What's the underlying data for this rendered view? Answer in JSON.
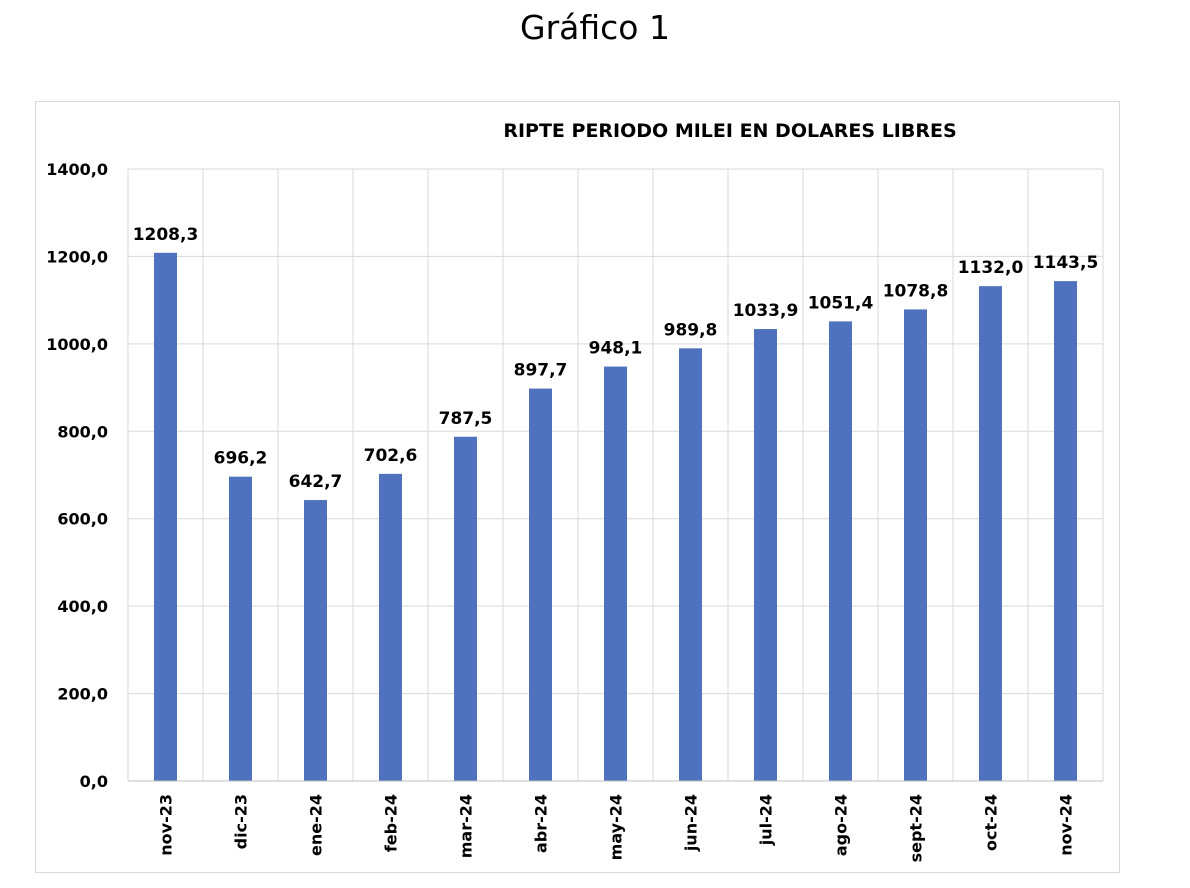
{
  "page": {
    "title": "Gráfico 1"
  },
  "chart_data": {
    "type": "bar",
    "title": "RIPTE PERIODO MILEI EN DOLARES LIBRES",
    "categories": [
      "nov-23",
      "dic-23",
      "ene-24",
      "feb-24",
      "mar-24",
      "abr-24",
      "may-24",
      "jun-24",
      "jul-24",
      "ago-24",
      "sept-24",
      "oct-24",
      "nov-24"
    ],
    "values": [
      1208.3,
      696.2,
      642.7,
      702.6,
      787.5,
      897.7,
      948.1,
      989.8,
      1033.9,
      1051.4,
      1078.8,
      1132.0,
      1143.5
    ],
    "value_labels": [
      "1208,3",
      "696,2",
      "642,7",
      "702,6",
      "787,5",
      "897,7",
      "948,1",
      "989,8",
      "1033,9",
      "1051,4",
      "1078,8",
      "1132,0",
      "1143,5"
    ],
    "ylim": [
      0,
      1400
    ],
    "yticks": [
      0,
      200,
      400,
      600,
      800,
      1000,
      1200,
      1400
    ],
    "ytick_labels": [
      "0,0",
      "200,0",
      "400,0",
      "600,0",
      "800,0",
      "1000,0",
      "1200,0",
      "1400,0"
    ],
    "xlabel": "",
    "ylabel": "",
    "grid": true,
    "bar_color": "#4f71be",
    "grid_color": "#d9d9d9"
  }
}
